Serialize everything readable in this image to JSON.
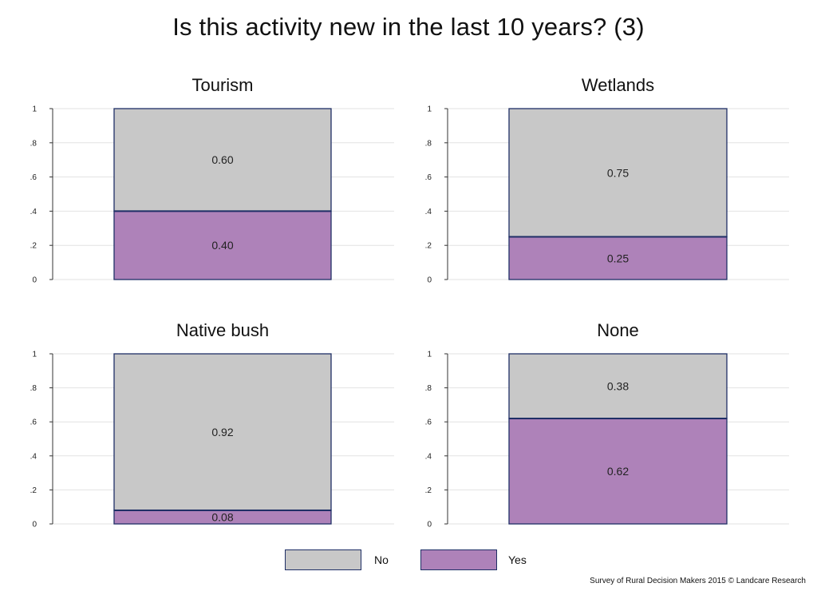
{
  "title": "Is this activity new in the last 10 years? (3)",
  "credit": "Survey of Rural Decision Makers 2015 © Landcare Research",
  "colors": {
    "yes": "#ae82b9",
    "no": "#c8c8c8",
    "border": "#1f2f66",
    "grid": "#e2e2e2"
  },
  "legend": [
    {
      "label": "No",
      "color": "#c8c8c8"
    },
    {
      "label": "Yes",
      "color": "#ae82b9"
    }
  ],
  "chart_data": [
    {
      "type": "bar",
      "title": "Tourism",
      "stacked": true,
      "ylim": [
        0,
        1
      ],
      "yticks": [
        "0",
        ".2",
        ".4",
        ".6",
        ".8",
        "1"
      ],
      "series": [
        {
          "name": "Yes",
          "values": [
            0.4
          ],
          "label": "0.40"
        },
        {
          "name": "No",
          "values": [
            0.6
          ],
          "label": "0.60"
        }
      ]
    },
    {
      "type": "bar",
      "title": "Wetlands",
      "stacked": true,
      "ylim": [
        0,
        1
      ],
      "yticks": [
        "0",
        ".2",
        ".4",
        ".6",
        ".8",
        "1"
      ],
      "series": [
        {
          "name": "Yes",
          "values": [
            0.25
          ],
          "label": "0.25"
        },
        {
          "name": "No",
          "values": [
            0.75
          ],
          "label": "0.75"
        }
      ]
    },
    {
      "type": "bar",
      "title": "Native bush",
      "stacked": true,
      "ylim": [
        0,
        1
      ],
      "yticks": [
        "0",
        ".2",
        ".4",
        ".6",
        ".8",
        "1"
      ],
      "series": [
        {
          "name": "Yes",
          "values": [
            0.08
          ],
          "label": "0.08"
        },
        {
          "name": "No",
          "values": [
            0.92
          ],
          "label": "0.92"
        }
      ]
    },
    {
      "type": "bar",
      "title": "None",
      "stacked": true,
      "ylim": [
        0,
        1
      ],
      "yticks": [
        "0",
        ".2",
        ".4",
        ".6",
        ".8",
        "1"
      ],
      "series": [
        {
          "name": "Yes",
          "values": [
            0.62
          ],
          "label": "0.62"
        },
        {
          "name": "No",
          "values": [
            0.38
          ],
          "label": "0.38"
        }
      ]
    }
  ]
}
